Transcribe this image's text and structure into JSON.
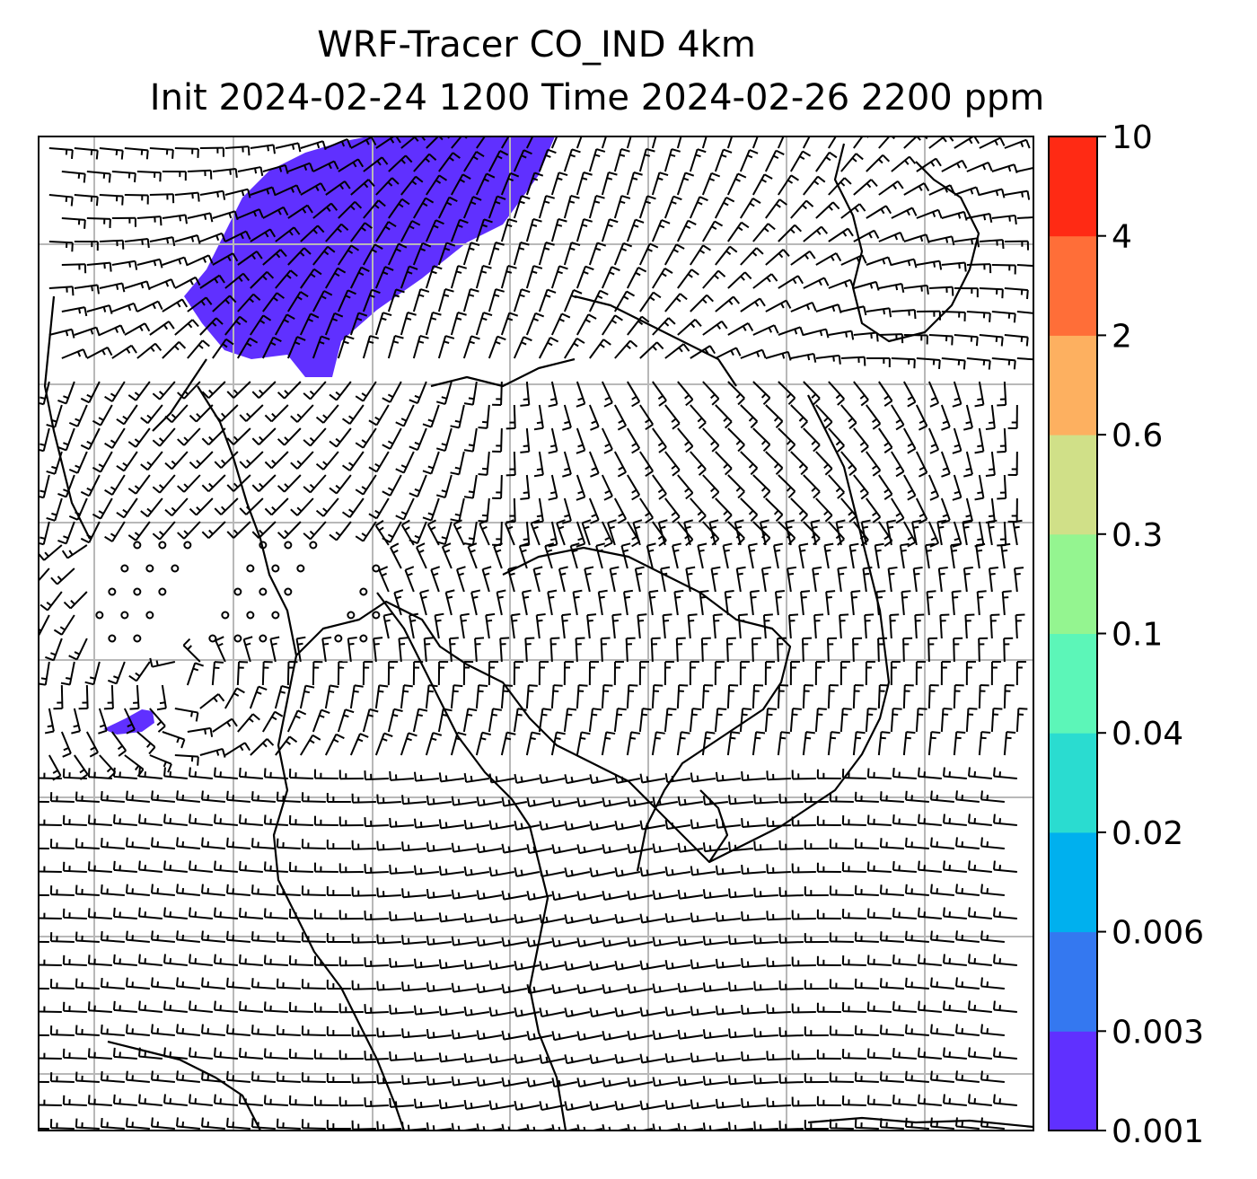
{
  "title": {
    "line1": "WRF-Tracer CO_IND 4km",
    "line2": "Init 2024-02-24 1200 Time 2024-02-26 2200 ppm"
  },
  "colorbar": {
    "levels": [
      "0.001",
      "0.003",
      "0.006",
      "0.02",
      "0.04",
      "0.1",
      "0.3",
      "0.6",
      "2",
      "4",
      "10"
    ],
    "colors": [
      "#6030ff",
      "#3478f0",
      "#00b0ee",
      "#2adcd0",
      "#5cf6b8",
      "#94f590",
      "#d0e088",
      "#fdb060",
      "#ff6e38",
      "#ff2a14"
    ]
  },
  "colors": {
    "tracer_plume": "#6030ff",
    "gridline": "#b8b8b8",
    "coastline": "#000000",
    "wind_barb": "#000000"
  },
  "map": {
    "gridlines": true,
    "features": [
      "coastlines",
      "country-borders",
      "wind-barbs",
      "tracer-concentration"
    ]
  }
}
